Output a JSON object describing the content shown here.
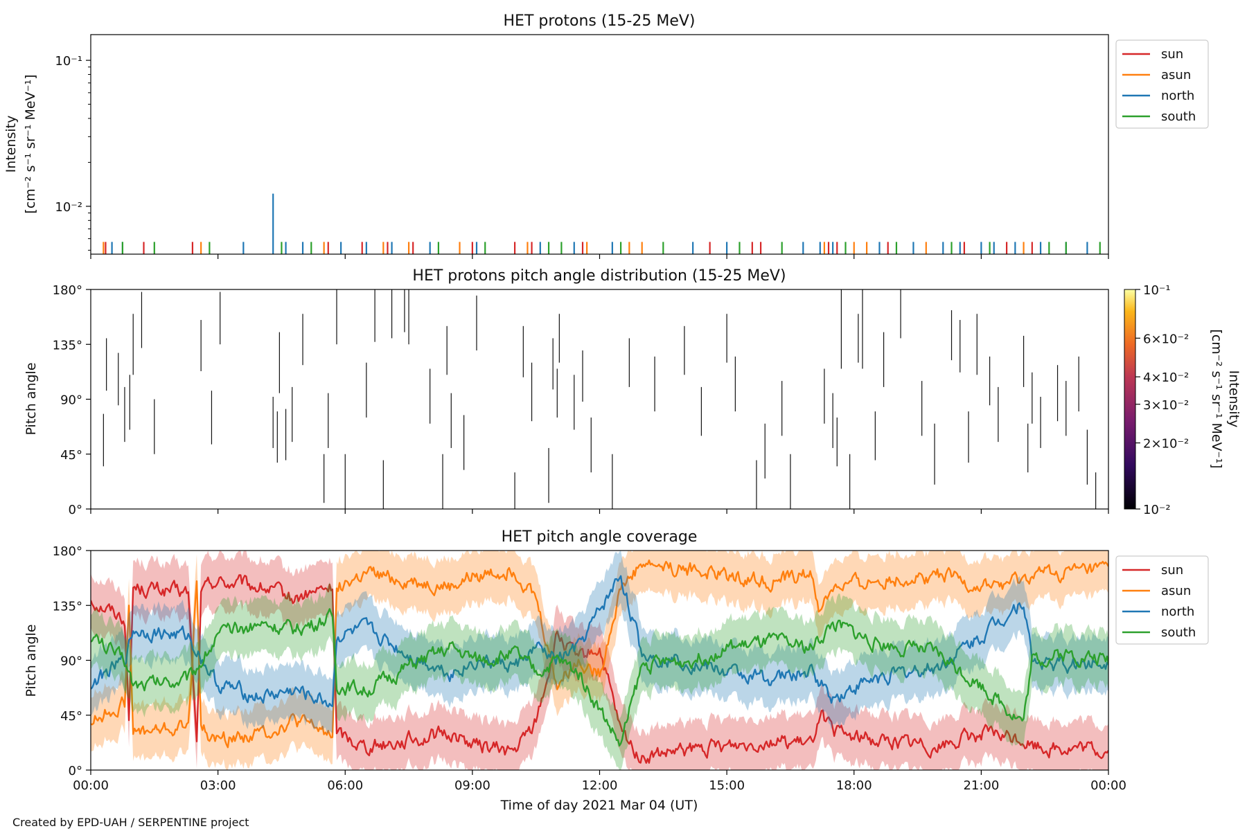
{
  "footer": "Created by EPD-UAH / SERPENTINE project",
  "colors": {
    "sun": "#d62728",
    "asun": "#ff7f0e",
    "north": "#1f77b4",
    "south": "#2ca02c"
  },
  "chart_data": [
    {
      "type": "bar",
      "title": "HET protons (15-25 MeV)",
      "ylabel_line1": "Intensity",
      "ylabel_line2": "[cm⁻² s⁻¹ sr⁻¹ MeV⁻¹]",
      "yscale": "log",
      "ylim": [
        0.0047,
        0.15
      ],
      "ytick_labels": [
        "10⁻²",
        "10⁻¹"
      ],
      "ytick_values": [
        0.01,
        0.1
      ],
      "xlim_hours": [
        0,
        24
      ],
      "legend": {
        "placement": "right-outside-top",
        "entries": [
          "sun",
          "asun",
          "north",
          "south"
        ]
      },
      "series": [
        {
          "name": "sun",
          "color": "#d62728",
          "hours": [
            0.35,
            1.25,
            2.4,
            5.6,
            6.4,
            7.0,
            7.6,
            9.0,
            10.0,
            10.4,
            11.6,
            14.6,
            15.6,
            15.8,
            17.4,
            17.6,
            18.8,
            20.6,
            21.6,
            22.2
          ],
          "value": 0.0057
        },
        {
          "name": "asun",
          "color": "#ff7f0e",
          "hours": [
            0.3,
            2.6,
            5.5,
            6.9,
            7.5,
            8.7,
            10.3,
            11.7,
            12.7,
            13.0,
            17.3,
            18.0,
            18.3,
            19.7,
            22.0
          ],
          "value": 0.0057
        },
        {
          "name": "north",
          "color": "#1f77b4",
          "hours": [
            0.5,
            3.6,
            4.6,
            5.0,
            5.9,
            6.5,
            7.1,
            8.0,
            9.1,
            10.6,
            11.4,
            12.3,
            14.2,
            15.0,
            16.8,
            17.2,
            17.5,
            18.6,
            19.4,
            20.1,
            20.5,
            21.0,
            21.3,
            21.8,
            22.4,
            23.0,
            23.5,
            0.75
          ],
          "value": 0.0057,
          "spike": {
            "hour": 4.3,
            "value": 0.0122
          }
        },
        {
          "name": "south",
          "color": "#2ca02c",
          "hours": [
            0.75,
            1.5,
            2.8,
            4.5,
            5.2,
            8.2,
            9.3,
            10.8,
            11.1,
            12.5,
            13.5,
            15.3,
            16.3,
            17.8,
            19.0,
            20.3,
            21.2,
            22.6,
            23.0,
            23.8
          ],
          "value": 0.0057
        }
      ]
    },
    {
      "type": "heatmap",
      "title": "HET protons pitch angle distribution (15-25 MeV)",
      "ylabel": "Pitch angle",
      "ylim": [
        0,
        180
      ],
      "ytick_labels": [
        "0°",
        "45°",
        "90°",
        "135°",
        "180°"
      ],
      "xlim_hours": [
        0,
        24
      ],
      "colorbar": {
        "scale": "log",
        "lim": [
          0.01,
          0.1
        ],
        "label_line1": "Intensity",
        "label_line2": "[cm⁻² s⁻¹ sr⁻¹ MeV⁻¹]",
        "tick_labels": [
          "10⁻²",
          "2×10⁻²",
          "3×10⁻²",
          "4×10⁻²",
          "6×10⁻²",
          "10⁻¹"
        ],
        "tick_values": [
          0.01,
          0.02,
          0.03,
          0.04,
          0.06,
          0.1
        ]
      },
      "segments": [
        [
          0.3,
          35,
          78
        ],
        [
          0.37,
          97,
          140
        ],
        [
          0.65,
          85,
          128
        ],
        [
          0.8,
          55,
          100
        ],
        [
          0.92,
          65,
          110
        ],
        [
          1.0,
          110,
          160
        ],
        [
          1.2,
          132,
          178
        ],
        [
          1.5,
          45,
          90
        ],
        [
          2.6,
          113,
          155
        ],
        [
          2.85,
          53,
          97
        ],
        [
          3.05,
          135,
          178
        ],
        [
          4.3,
          50,
          92
        ],
        [
          4.4,
          38,
          80
        ],
        [
          4.45,
          95,
          145
        ],
        [
          4.6,
          40,
          82
        ],
        [
          4.75,
          55,
          100
        ],
        [
          5.0,
          118,
          160
        ],
        [
          5.5,
          5,
          45
        ],
        [
          5.6,
          50,
          95
        ],
        [
          5.8,
          135,
          180
        ],
        [
          6.0,
          0,
          45
        ],
        [
          6.5,
          75,
          120
        ],
        [
          6.7,
          137,
          180
        ],
        [
          6.9,
          0,
          40
        ],
        [
          7.1,
          140,
          180
        ],
        [
          7.4,
          145,
          180
        ],
        [
          7.5,
          135,
          180
        ],
        [
          8.0,
          70,
          115
        ],
        [
          8.3,
          0,
          45
        ],
        [
          8.4,
          110,
          150
        ],
        [
          8.5,
          50,
          95
        ],
        [
          8.8,
          32,
          77
        ],
        [
          9.1,
          130,
          175
        ],
        [
          10.0,
          0,
          30
        ],
        [
          10.2,
          108,
          150
        ],
        [
          10.4,
          72,
          120
        ],
        [
          10.8,
          5,
          50
        ],
        [
          10.9,
          98,
          140
        ],
        [
          11.0,
          75,
          115
        ],
        [
          11.05,
          120,
          160
        ],
        [
          11.4,
          65,
          110
        ],
        [
          11.6,
          88,
          130
        ],
        [
          11.8,
          30,
          75
        ],
        [
          12.3,
          0,
          45
        ],
        [
          12.7,
          100,
          140
        ],
        [
          13.3,
          80,
          125
        ],
        [
          14.0,
          110,
          150
        ],
        [
          14.4,
          60,
          100
        ],
        [
          15.0,
          120,
          160
        ],
        [
          15.2,
          80,
          125
        ],
        [
          15.7,
          0,
          40
        ],
        [
          15.9,
          25,
          70
        ],
        [
          16.3,
          60,
          105
        ],
        [
          16.5,
          0,
          45
        ],
        [
          17.3,
          70,
          115
        ],
        [
          17.5,
          50,
          95
        ],
        [
          17.6,
          35,
          75
        ],
        [
          17.7,
          115,
          180
        ],
        [
          17.9,
          0,
          45
        ],
        [
          18.1,
          120,
          160
        ],
        [
          18.2,
          115,
          180
        ],
        [
          18.5,
          40,
          80
        ],
        [
          18.7,
          100,
          145
        ],
        [
          19.1,
          140,
          180
        ],
        [
          19.6,
          60,
          105
        ],
        [
          19.9,
          20,
          70
        ],
        [
          20.3,
          122,
          163
        ],
        [
          20.5,
          112,
          155
        ],
        [
          20.7,
          38,
          80
        ],
        [
          20.9,
          110,
          160
        ],
        [
          21.2,
          85,
          125
        ],
        [
          21.4,
          55,
          100
        ],
        [
          22.0,
          100,
          142
        ],
        [
          22.1,
          30,
          70
        ],
        [
          22.2,
          70,
          112
        ],
        [
          22.4,
          50,
          92
        ],
        [
          22.8,
          72,
          118
        ],
        [
          23.0,
          60,
          105
        ],
        [
          23.3,
          80,
          125
        ],
        [
          23.5,
          20,
          65
        ],
        [
          23.7,
          0,
          30
        ]
      ]
    },
    {
      "type": "line",
      "title": "HET pitch angle coverage",
      "ylabel": "Pitch angle",
      "xlabel": "Time of day 2021 Mar 04 (UT)",
      "ylim": [
        0,
        180
      ],
      "ytick_labels": [
        "0°",
        "45°",
        "90°",
        "135°",
        "180°"
      ],
      "xlim_hours": [
        0,
        24
      ],
      "xtick_labels": [
        "00:00",
        "03:00",
        "06:00",
        "09:00",
        "12:00",
        "15:00",
        "18:00",
        "21:00",
        "00:00"
      ],
      "band_halfwidth_deg": 22,
      "legend": {
        "placement": "right-outside-top",
        "entries": [
          "sun",
          "asun",
          "north",
          "south"
        ]
      },
      "series": [
        {
          "name": "sun",
          "color": "#d62728",
          "points": [
            [
              0,
              140
            ],
            [
              0.8,
              125
            ],
            [
              0.9,
              40
            ],
            [
              1.0,
              150
            ],
            [
              2.3,
              145
            ],
            [
              2.5,
              20
            ],
            [
              2.6,
              145
            ],
            [
              2.9,
              155
            ],
            [
              4.0,
              150
            ],
            [
              4.8,
              140
            ],
            [
              5.7,
              150
            ],
            [
              5.8,
              30
            ],
            [
              6.5,
              20
            ],
            [
              7.5,
              25
            ],
            [
              8.5,
              30
            ],
            [
              9.1,
              20
            ],
            [
              9.2,
              20
            ],
            [
              10.0,
              15
            ],
            [
              10.5,
              40
            ],
            [
              11.0,
              110
            ],
            [
              11.5,
              90
            ],
            [
              12.0,
              100
            ],
            [
              12.5,
              30
            ],
            [
              13.0,
              10
            ],
            [
              14.0,
              15
            ],
            [
              15.0,
              20
            ],
            [
              16.0,
              25
            ],
            [
              17.0,
              20
            ],
            [
              17.2,
              50
            ],
            [
              17.5,
              30
            ],
            [
              18.5,
              25
            ],
            [
              20.0,
              20
            ],
            [
              21.0,
              30
            ],
            [
              22.0,
              25
            ],
            [
              22.2,
              20
            ],
            [
              23.0,
              18
            ],
            [
              24.0,
              15
            ]
          ]
        },
        {
          "name": "asun",
          "color": "#ff7f0e",
          "points": [
            [
              0,
              40
            ],
            [
              0.8,
              55
            ],
            [
              0.9,
              140
            ],
            [
              1.0,
              30
            ],
            [
              2.3,
              35
            ],
            [
              2.5,
              160
            ],
            [
              2.6,
              35
            ],
            [
              2.9,
              25
            ],
            [
              4.0,
              30
            ],
            [
              4.8,
              40
            ],
            [
              5.7,
              30
            ],
            [
              5.8,
              150
            ],
            [
              6.5,
              160
            ],
            [
              7.5,
              155
            ],
            [
              8.5,
              150
            ],
            [
              9.1,
              160
            ],
            [
              9.2,
              160
            ],
            [
              10.0,
              165
            ],
            [
              10.5,
              140
            ],
            [
              11.0,
              70
            ],
            [
              11.5,
              90
            ],
            [
              12.0,
              80
            ],
            [
              12.5,
              150
            ],
            [
              13.0,
              170
            ],
            [
              14.0,
              165
            ],
            [
              15.0,
              160
            ],
            [
              16.0,
              155
            ],
            [
              17.0,
              160
            ],
            [
              17.2,
              130
            ],
            [
              17.5,
              150
            ],
            [
              18.5,
              155
            ],
            [
              20.0,
              160
            ],
            [
              21.0,
              150
            ],
            [
              22.0,
              155
            ],
            [
              22.2,
              160
            ],
            [
              23.0,
              162
            ],
            [
              24.0,
              165
            ]
          ]
        },
        {
          "name": "north",
          "color": "#1f77b4",
          "points": [
            [
              0,
              70
            ],
            [
              0.8,
              90
            ],
            [
              1.0,
              115
            ],
            [
              2.3,
              110
            ],
            [
              3.0,
              70
            ],
            [
              4.0,
              60
            ],
            [
              4.8,
              65
            ],
            [
              5.7,
              55
            ],
            [
              5.8,
              110
            ],
            [
              6.5,
              115
            ],
            [
              7.5,
              95
            ],
            [
              8.5,
              80
            ],
            [
              9.1,
              90
            ],
            [
              10.0,
              85
            ],
            [
              10.5,
              100
            ],
            [
              11.0,
              90
            ],
            [
              11.5,
              100
            ],
            [
              12.0,
              130
            ],
            [
              12.5,
              160
            ],
            [
              13.0,
              95
            ],
            [
              14.0,
              90
            ],
            [
              15.0,
              80
            ],
            [
              16.0,
              75
            ],
            [
              17.0,
              80
            ],
            [
              17.5,
              60
            ],
            [
              18.5,
              75
            ],
            [
              20.0,
              85
            ],
            [
              21.0,
              110
            ],
            [
              22.0,
              140
            ],
            [
              22.2,
              90
            ],
            [
              23.0,
              85
            ],
            [
              24.0,
              90
            ]
          ]
        },
        {
          "name": "south",
          "color": "#2ca02c",
          "points": [
            [
              0,
              110
            ],
            [
              0.8,
              90
            ],
            [
              1.0,
              70
            ],
            [
              2.3,
              75
            ],
            [
              3.0,
              110
            ],
            [
              4.0,
              120
            ],
            [
              4.8,
              115
            ],
            [
              5.7,
              125
            ],
            [
              5.8,
              70
            ],
            [
              6.5,
              65
            ],
            [
              7.5,
              85
            ],
            [
              8.5,
              100
            ],
            [
              9.1,
              90
            ],
            [
              10.0,
              95
            ],
            [
              10.5,
              80
            ],
            [
              11.0,
              90
            ],
            [
              11.5,
              80
            ],
            [
              12.0,
              50
            ],
            [
              12.5,
              20
            ],
            [
              13.0,
              85
            ],
            [
              14.0,
              90
            ],
            [
              15.0,
              100
            ],
            [
              16.0,
              105
            ],
            [
              17.0,
              100
            ],
            [
              17.5,
              120
            ],
            [
              18.5,
              105
            ],
            [
              20.0,
              95
            ],
            [
              21.0,
              70
            ],
            [
              22.0,
              40
            ],
            [
              22.2,
              90
            ],
            [
              23.0,
              95
            ],
            [
              24.0,
              90
            ]
          ]
        }
      ]
    }
  ]
}
